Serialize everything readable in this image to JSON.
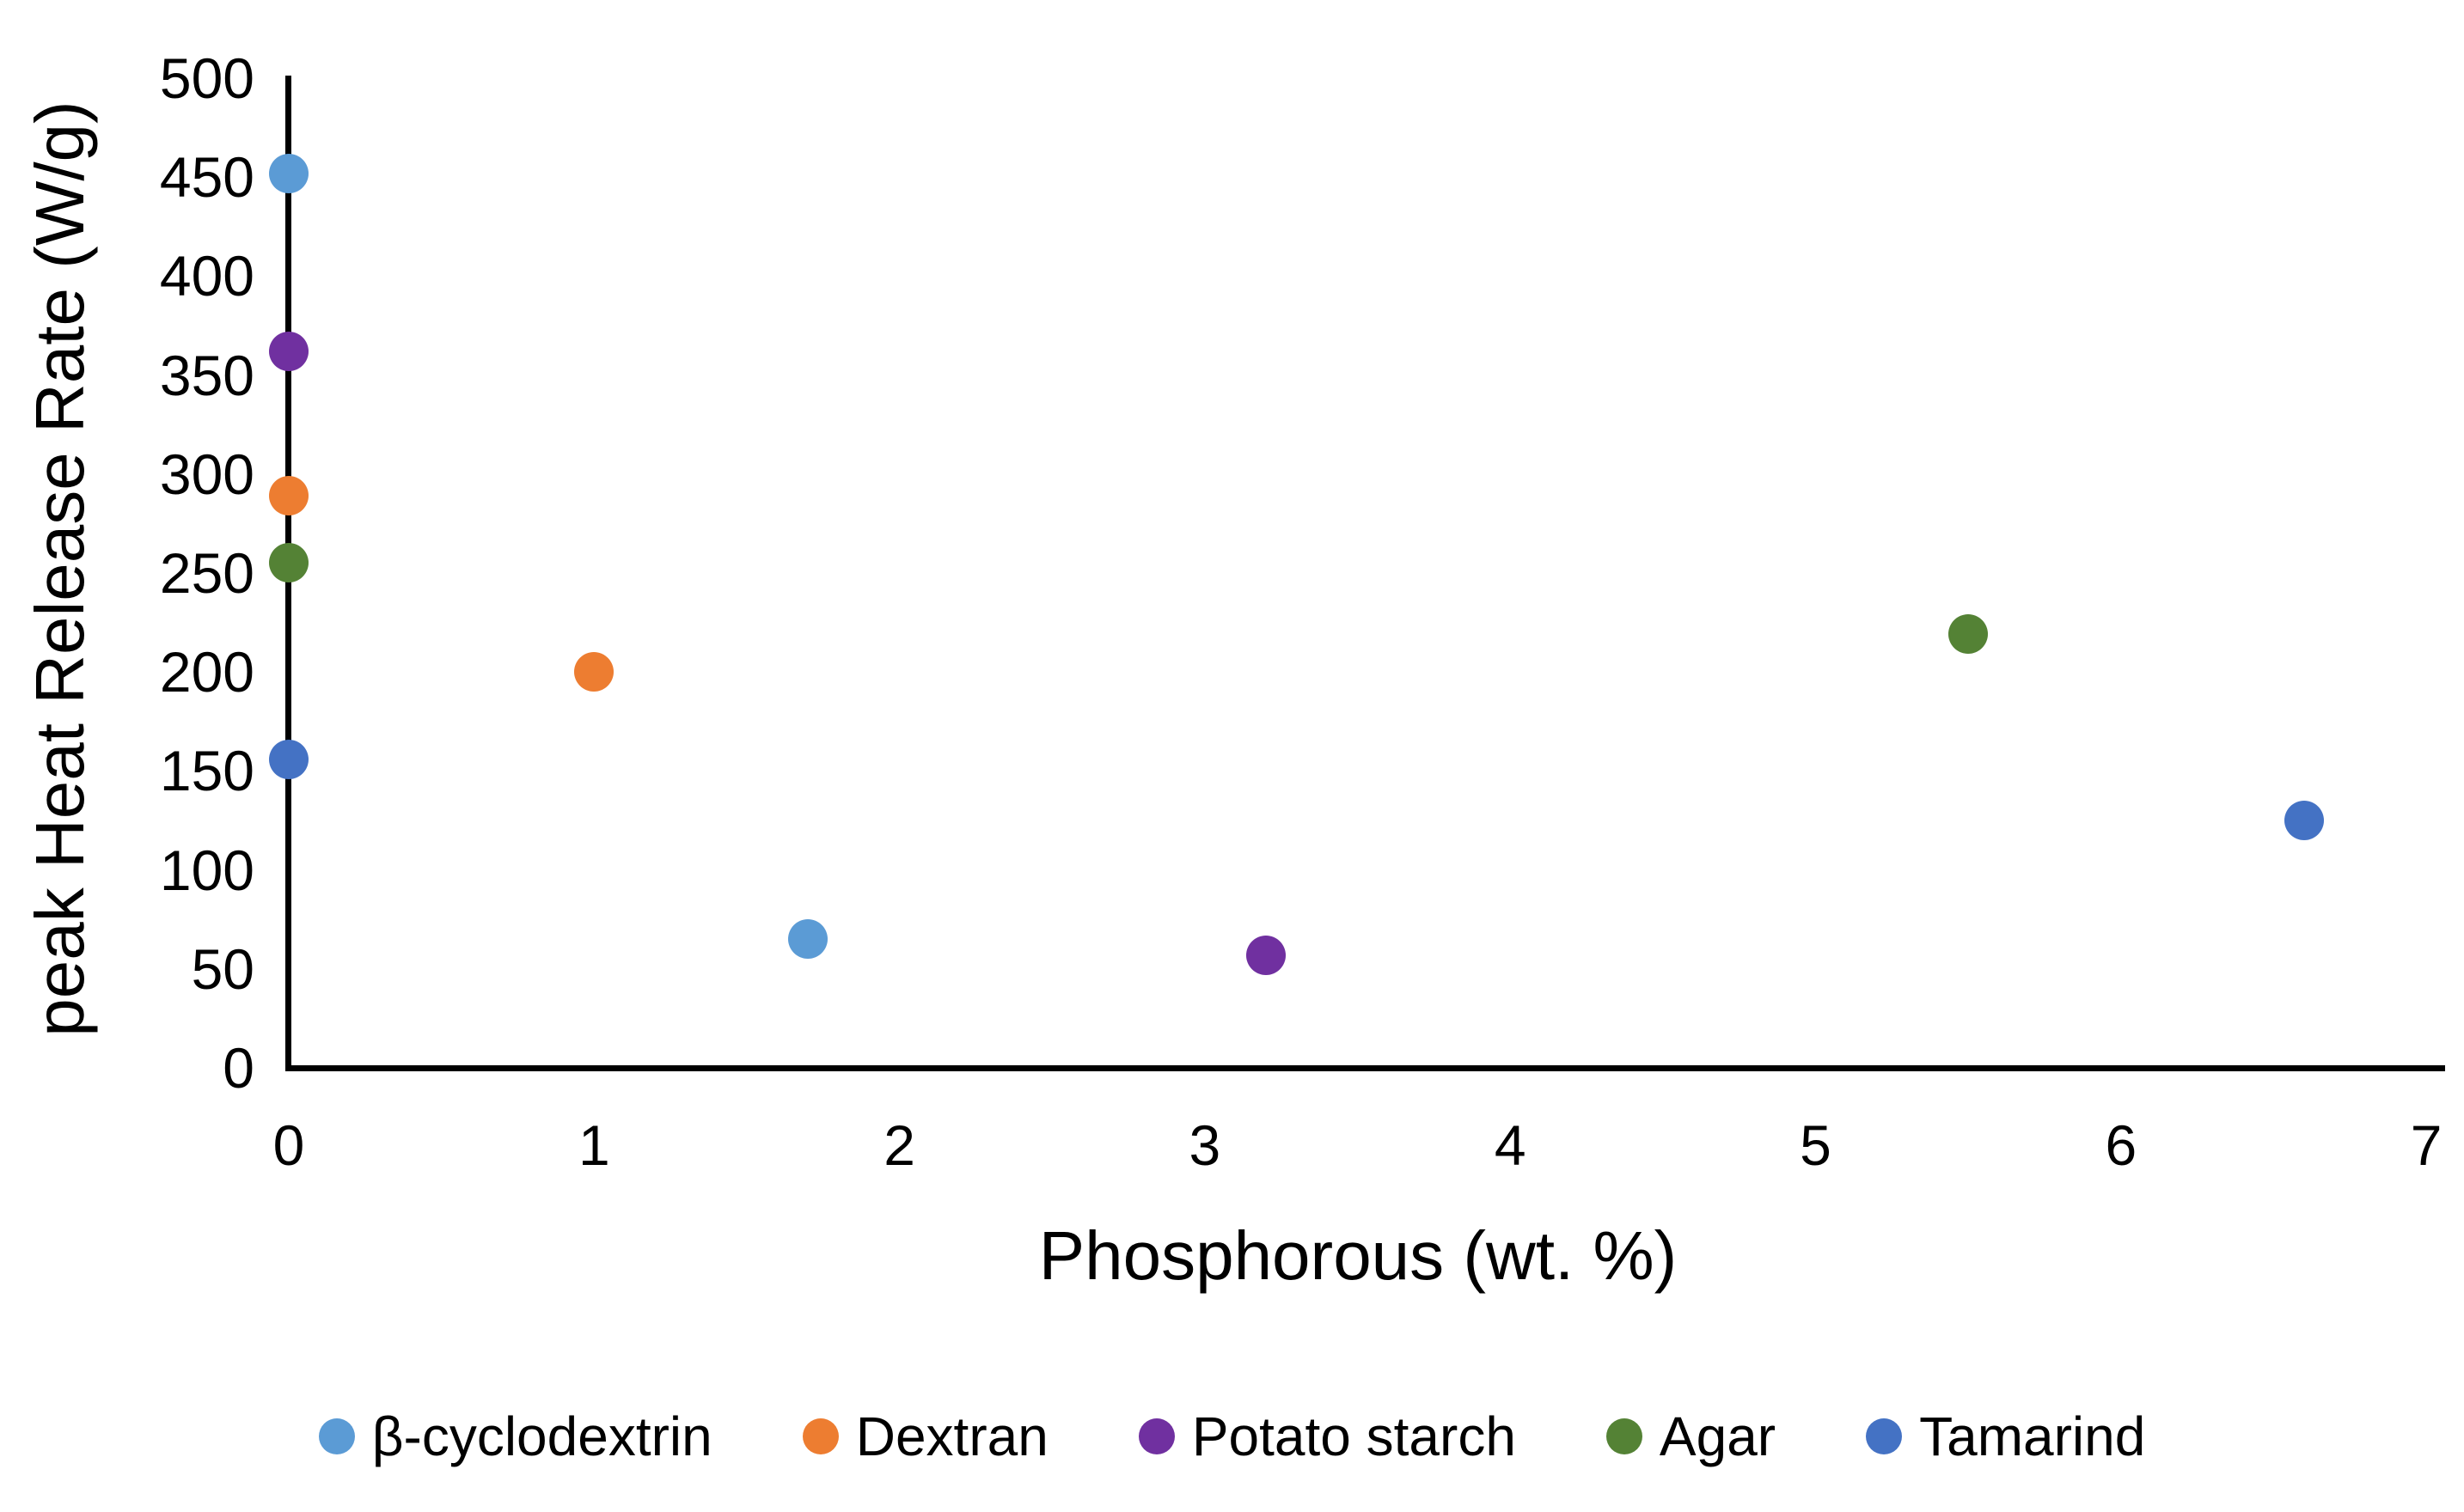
{
  "figure": {
    "background": "#FFFFFF",
    "axis_color": "#000000",
    "text_color": "#000000"
  },
  "chart_data": {
    "type": "scatter",
    "title": "",
    "xlabel": "Phosphorous (wt. %)",
    "ylabel": "peak Heat Release Rate (W/g)",
    "xlim": [
      0,
      7
    ],
    "ylim": [
      0,
      500
    ],
    "x_ticks": [
      0,
      1,
      2,
      3,
      4,
      5,
      6,
      7
    ],
    "y_ticks": [
      0,
      50,
      100,
      150,
      200,
      250,
      300,
      350,
      400,
      450,
      500
    ],
    "grid": false,
    "legend_position": "bottom",
    "marker": "circle",
    "series": [
      {
        "name": "β-cyclodextrin",
        "color": "#5B9BD5",
        "points": [
          [
            0,
            452
          ],
          [
            1.7,
            65
          ]
        ]
      },
      {
        "name": "Dextran",
        "color": "#ED7D31",
        "points": [
          [
            0,
            289
          ],
          [
            1.0,
            200
          ]
        ]
      },
      {
        "name": "Potato starch",
        "color": "#7030A0",
        "points": [
          [
            0,
            362
          ],
          [
            3.2,
            57
          ]
        ]
      },
      {
        "name": "Agar",
        "color": "#548235",
        "points": [
          [
            0,
            255
          ],
          [
            5.5,
            219
          ]
        ]
      },
      {
        "name": "Tamarind",
        "color": "#4472C4",
        "points": [
          [
            0,
            156
          ],
          [
            6.6,
            125
          ]
        ]
      }
    ]
  }
}
